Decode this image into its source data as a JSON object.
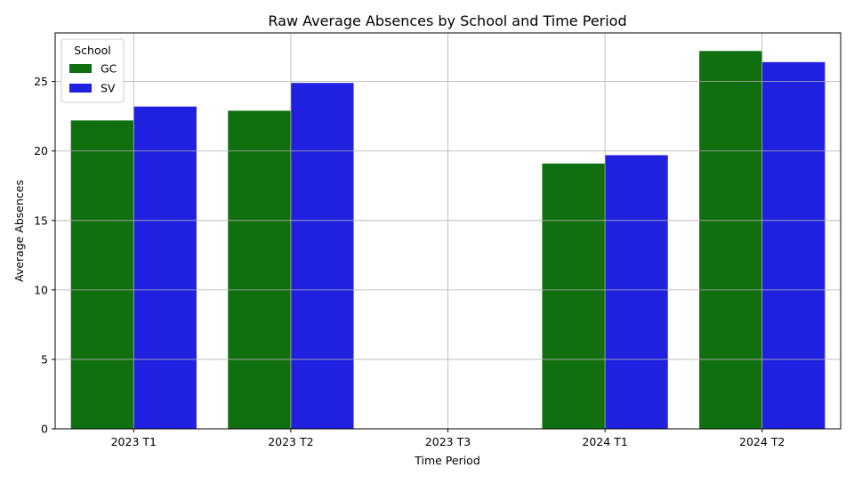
{
  "chart_data": {
    "type": "bar",
    "title": "Raw Average Absences by School and Time Period",
    "xlabel": "Time Period",
    "ylabel": "Average Absences",
    "categories": [
      "2023 T1",
      "2023 T2",
      "2023 T3",
      "2024 T1",
      "2024 T2"
    ],
    "series": [
      {
        "name": "GC",
        "color": "#107010",
        "values": [
          22.2,
          22.9,
          null,
          19.1,
          27.2
        ]
      },
      {
        "name": "SV",
        "color": "#2020e0",
        "values": [
          23.2,
          24.9,
          null,
          19.7,
          26.4
        ]
      }
    ],
    "ylim": [
      0,
      28.5
    ],
    "yticks": [
      0,
      5,
      10,
      15,
      20,
      25
    ],
    "grid": true,
    "legend": {
      "title": "School",
      "placement": "top-left"
    }
  }
}
